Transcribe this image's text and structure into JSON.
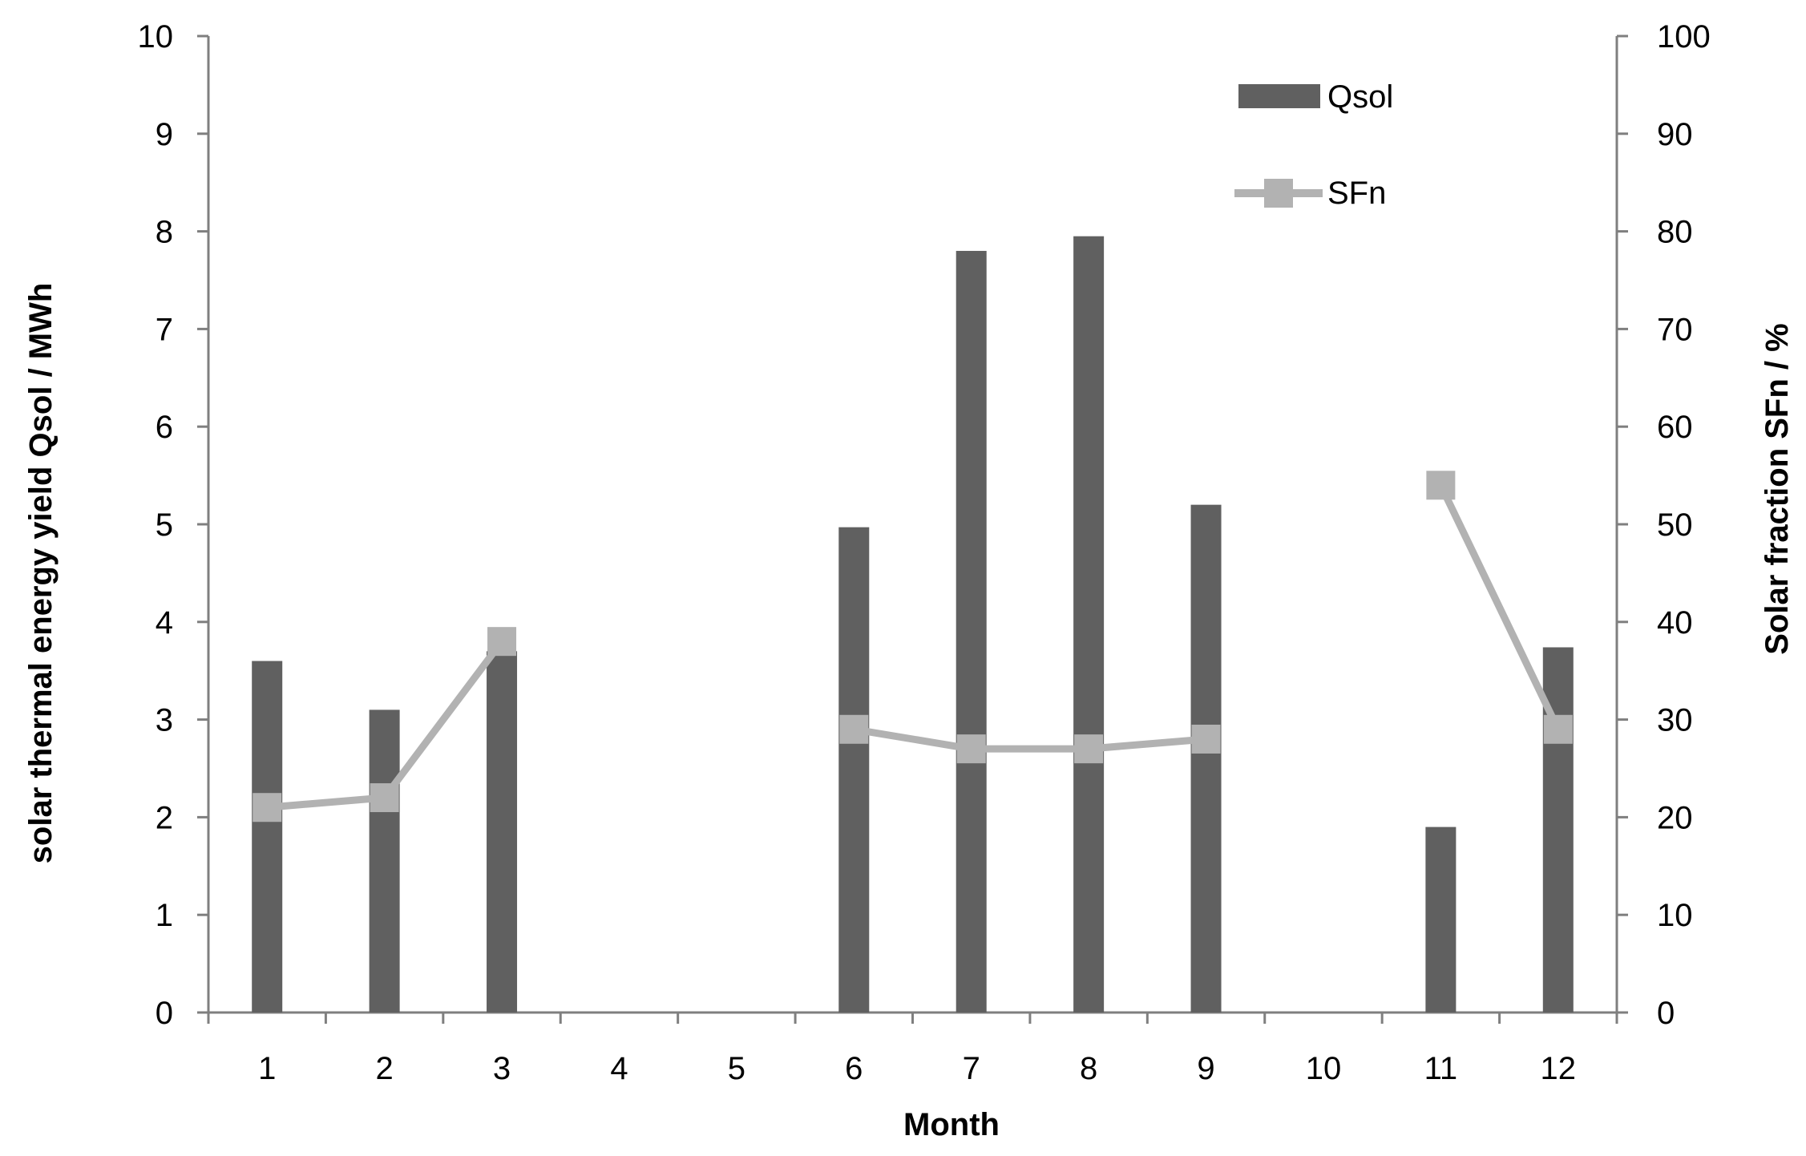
{
  "chart_data": {
    "type": "bar+line",
    "title": "",
    "xlabel": "Month",
    "ylabel_left": "solar thermal energy yield Qsol / MWh",
    "ylabel_right": "Solar fraction SFn / %",
    "categories": [
      "1",
      "2",
      "3",
      "4",
      "5",
      "6",
      "7",
      "8",
      "9",
      "10",
      "11",
      "12"
    ],
    "ylim_left": [
      0,
      10
    ],
    "ylim_right": [
      0,
      100
    ],
    "yticks_left": [
      "0",
      "1",
      "2",
      "3",
      "4",
      "5",
      "6",
      "7",
      "8",
      "9",
      "10"
    ],
    "yticks_right": [
      "0",
      "10",
      "20",
      "30",
      "40",
      "50",
      "60",
      "70",
      "80",
      "90",
      "100"
    ],
    "grid": false,
    "legend_position": "top-right",
    "series": [
      {
        "name": "Qsol",
        "type": "bar",
        "axis": "left",
        "color": "#606060",
        "values": [
          3.6,
          3.1,
          3.7,
          null,
          null,
          4.97,
          7.8,
          7.95,
          5.2,
          null,
          1.9,
          3.74
        ]
      },
      {
        "name": "SFn",
        "type": "line",
        "axis": "right",
        "color": "#b2b2b2",
        "values": [
          21,
          22,
          38,
          null,
          null,
          29,
          27,
          27,
          28,
          null,
          54,
          29
        ]
      }
    ]
  }
}
